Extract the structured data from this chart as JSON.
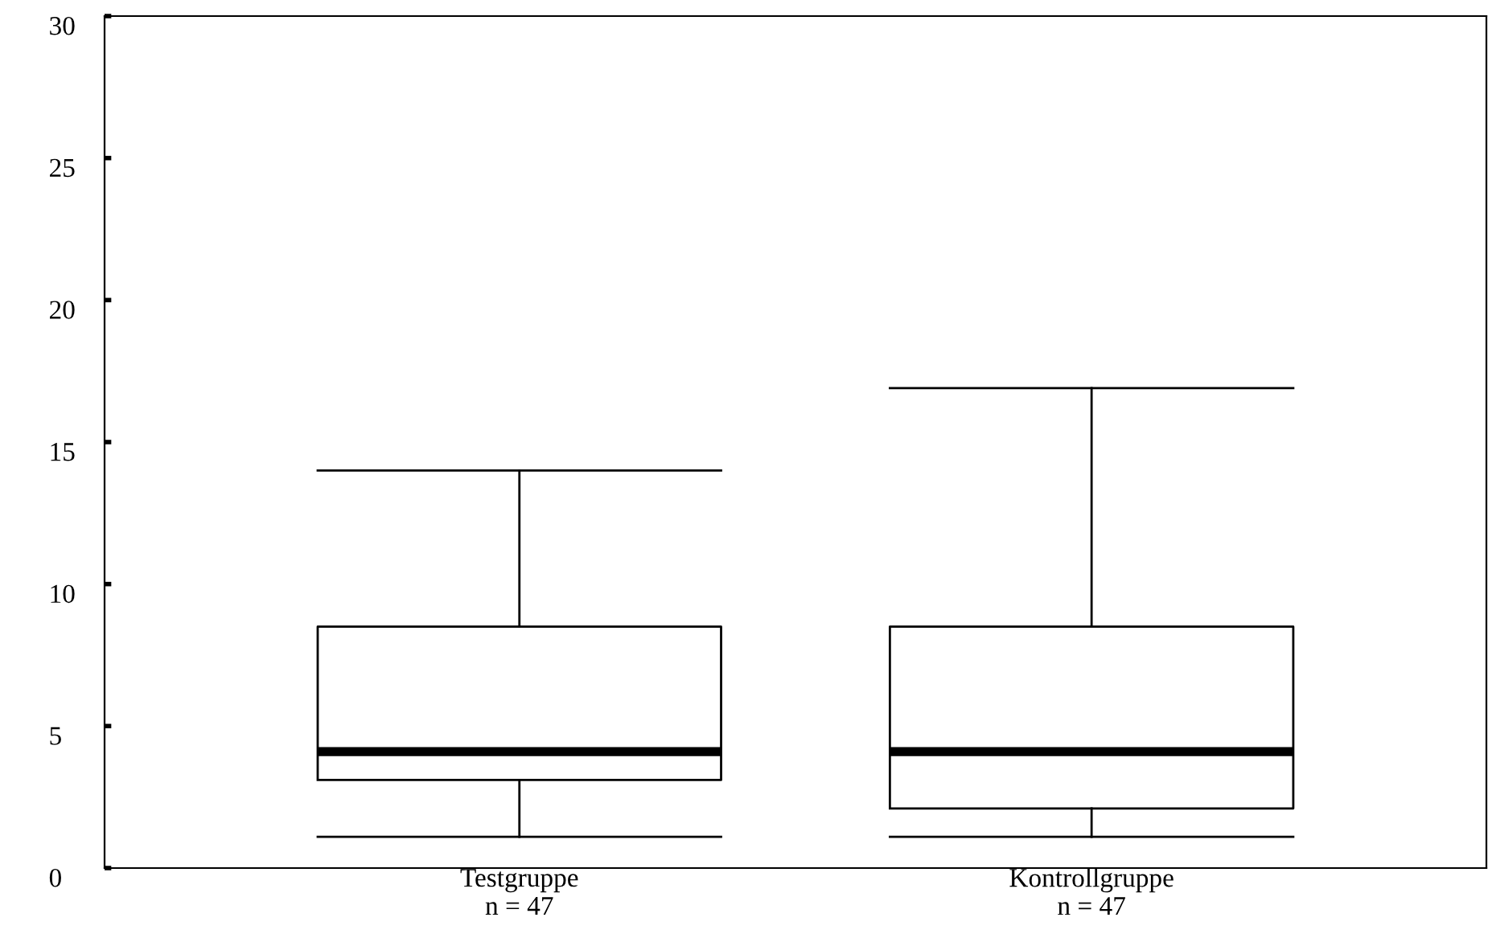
{
  "chart_data": {
    "type": "box",
    "categories": [
      "Testgruppe\nn = 47",
      "Kontrollgruppe\nn = 47"
    ],
    "boxes": [
      {
        "low": 1.1,
        "q1": 3.1,
        "median": 4.1,
        "q3": 8.5,
        "high": 14.0
      },
      {
        "low": 1.1,
        "q1": 2.1,
        "median": 4.1,
        "q3": 8.5,
        "high": 16.9
      }
    ],
    "ylim": [
      0,
      30
    ],
    "yticks": [
      0,
      5,
      10,
      15,
      20,
      25,
      30
    ],
    "grid": false,
    "legend": false
  }
}
